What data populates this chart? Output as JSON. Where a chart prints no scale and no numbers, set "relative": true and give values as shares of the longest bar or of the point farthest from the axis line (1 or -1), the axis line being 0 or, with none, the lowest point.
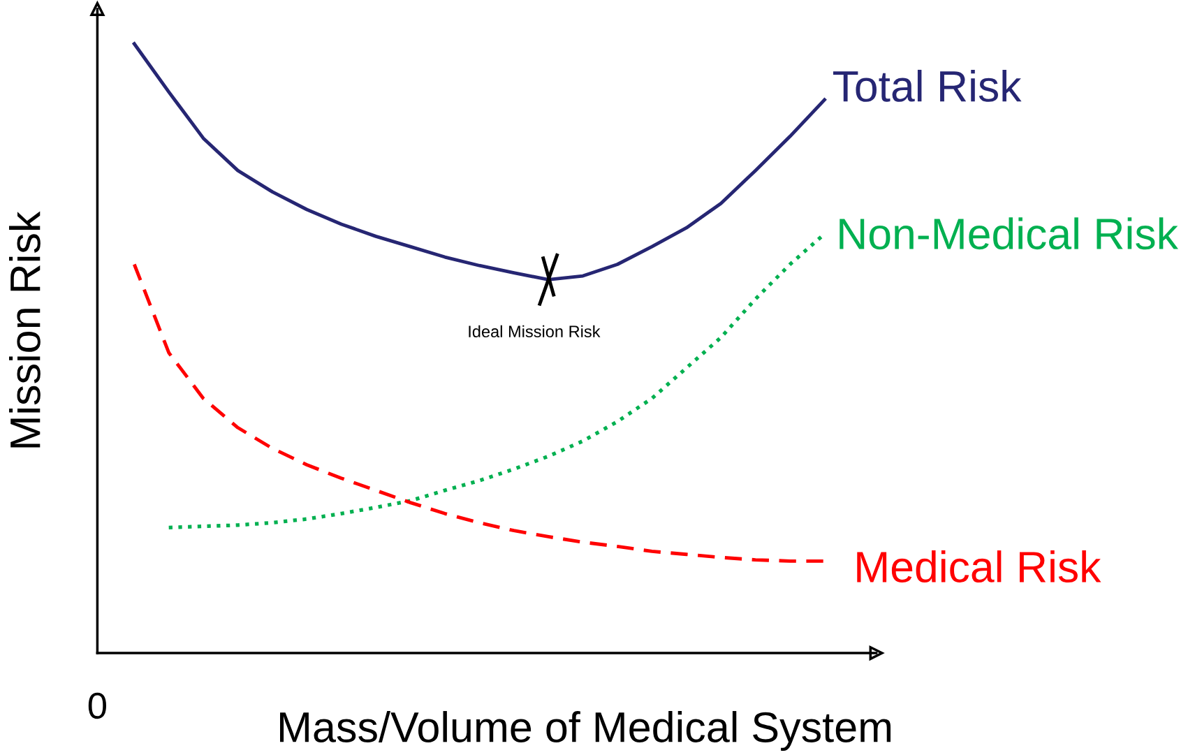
{
  "chart_data": {
    "type": "line",
    "relative": true,
    "xlabel": "Mass/Volume of Medical System",
    "ylabel": "Mission Risk",
    "categories": [
      null,
      null,
      null,
      null,
      null,
      null,
      null,
      null,
      null,
      null,
      null,
      null,
      null,
      null,
      null,
      null,
      null,
      null,
      null,
      null,
      null
    ],
    "series": [
      {
        "name": "Total Risk",
        "color": "#262673",
        "line_style": "solid",
        "values": [
          1.0,
          0.921,
          0.845,
          0.792,
          0.757,
          0.728,
          0.704,
          0.684,
          0.667,
          0.65,
          0.636,
          0.624,
          0.613,
          0.619,
          0.638,
          0.667,
          0.698,
          0.738,
          0.792,
          0.848,
          0.908
        ]
      },
      {
        "name": "Non-Medical Risk",
        "color": "#00b050",
        "line_style": "dotted",
        "values": [
          null,
          0.206,
          0.208,
          0.21,
          0.214,
          0.22,
          0.229,
          0.239,
          0.25,
          0.267,
          0.283,
          0.302,
          0.323,
          0.348,
          0.38,
          0.418,
          0.468,
          0.518,
          0.581,
          0.638,
          0.688
        ]
      },
      {
        "name": "Medical Risk",
        "color": "#ff0000",
        "line_style": "dashed",
        "values": [
          0.638,
          0.493,
          0.418,
          0.37,
          0.336,
          0.309,
          0.287,
          0.267,
          0.247,
          0.229,
          0.214,
          0.201,
          0.191,
          0.182,
          0.175,
          0.167,
          0.162,
          0.157,
          0.153,
          0.151,
          0.151
        ]
      }
    ],
    "annotations": [
      "Ideal Mission Risk",
      "0"
    ],
    "grid": false,
    "legend": false
  }
}
